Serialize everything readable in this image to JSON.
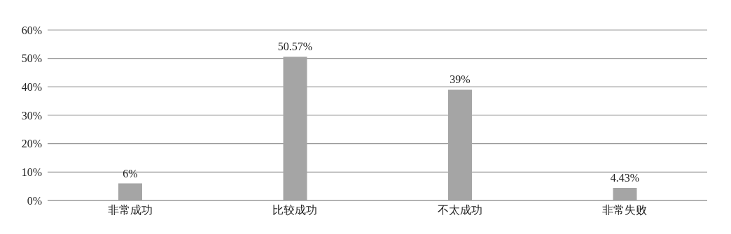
{
  "chart_data": {
    "type": "bar",
    "categories": [
      "非常成功",
      "比较成功",
      "不太成功",
      "非常失败"
    ],
    "values": [
      6,
      50.57,
      39,
      4.43
    ],
    "value_labels": [
      "6%",
      "50.57%",
      "39%",
      "4.43%"
    ],
    "color": "#a5a5a5",
    "ylim": [
      0,
      60
    ],
    "yticks": [
      {
        "value": 0,
        "label": "0%"
      },
      {
        "value": 10,
        "label": "10%"
      },
      {
        "value": 20,
        "label": "20%"
      },
      {
        "value": 30,
        "label": "30%"
      },
      {
        "value": 40,
        "label": "40%"
      },
      {
        "value": 50,
        "label": "50%"
      },
      {
        "value": 60,
        "label": "60%"
      }
    ],
    "grid": "y",
    "legend": false
  }
}
